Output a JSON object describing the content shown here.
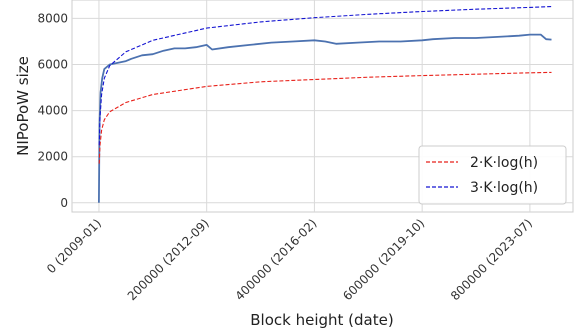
{
  "chart_data": {
    "type": "line",
    "xlabel": "Block height (date)",
    "ylabel": "NIPoPoW size",
    "xlim": [
      -50000,
      880000
    ],
    "ylim": [
      -400,
      8800
    ],
    "grid": true,
    "legend_position": "lower-right",
    "x_ticks": [
      {
        "value": 0,
        "label": "0 (2009-01)"
      },
      {
        "value": 200000,
        "label": "200000 (2012-09)"
      },
      {
        "value": 400000,
        "label": "400000 (2016-02)"
      },
      {
        "value": 600000,
        "label": "600000 (2019-10)"
      },
      {
        "value": 800000,
        "label": "800000 (2023-07)"
      }
    ],
    "y_ticks": [
      {
        "value": 0,
        "label": "0"
      },
      {
        "value": 2000,
        "label": "2000"
      },
      {
        "value": 4000,
        "label": "4000"
      },
      {
        "value": 6000,
        "label": "6000"
      },
      {
        "value": 8000,
        "label": "8000"
      }
    ],
    "series": [
      {
        "name": "",
        "color": "#4c72b0",
        "style": "solid",
        "x": [
          0,
          1000,
          3000,
          6000,
          10000,
          20000,
          30000,
          40000,
          50000,
          60000,
          80000,
          100000,
          120000,
          140000,
          160000,
          180000,
          200000,
          210000,
          240000,
          280000,
          320000,
          360000,
          400000,
          420000,
          440000,
          480000,
          520000,
          560000,
          600000,
          620000,
          660000,
          700000,
          740000,
          780000,
          800000,
          820000,
          830000,
          840000
        ],
        "y": [
          0,
          3400,
          4800,
          5400,
          5800,
          6000,
          6050,
          6100,
          6150,
          6250,
          6400,
          6450,
          6600,
          6700,
          6700,
          6750,
          6850,
          6650,
          6750,
          6850,
          6950,
          7000,
          7050,
          7000,
          6900,
          6950,
          7000,
          7000,
          7050,
          7100,
          7150,
          7150,
          7200,
          7250,
          7300,
          7300,
          7100,
          7080
        ]
      },
      {
        "name": "2·K·log(h)",
        "color": "#e8221b",
        "style": "dashed",
        "x": [
          500,
          2000,
          5000,
          10000,
          20000,
          50000,
          100000,
          200000,
          300000,
          400000,
          500000,
          600000,
          700000,
          800000,
          840000
        ],
        "y": [
          1700,
          2500,
          3150,
          3600,
          3950,
          4350,
          4700,
          5050,
          5250,
          5350,
          5450,
          5520,
          5580,
          5640,
          5660
        ]
      },
      {
        "name": "3·K·log(h)",
        "color": "#1414d2",
        "style": "dashed",
        "x": [
          500,
          2000,
          5000,
          10000,
          20000,
          50000,
          100000,
          200000,
          300000,
          400000,
          500000,
          600000,
          700000,
          800000,
          840000
        ],
        "y": [
          2500,
          3700,
          4700,
          5400,
          5950,
          6550,
          7050,
          7580,
          7850,
          8030,
          8180,
          8300,
          8400,
          8480,
          8520
        ]
      }
    ]
  }
}
